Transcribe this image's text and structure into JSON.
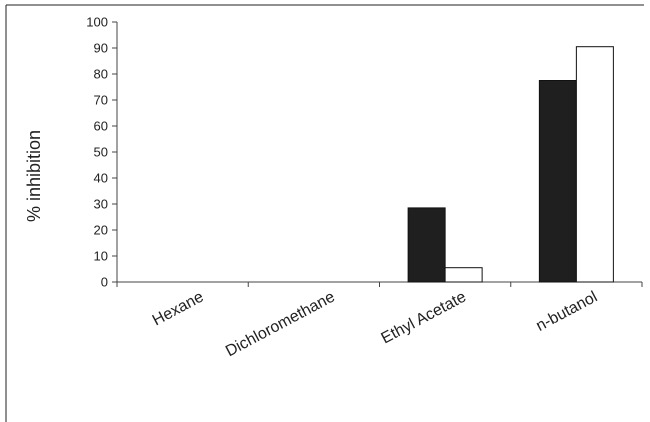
{
  "chart_data": {
    "type": "bar",
    "title": "",
    "xlabel": "",
    "ylabel": "% inhibition",
    "ylim": [
      0,
      100
    ],
    "yticks": [
      0,
      10,
      20,
      30,
      40,
      50,
      60,
      70,
      80,
      90,
      100
    ],
    "categories": [
      "Hexane",
      "Dichloromethane",
      "Ethyl Acetate",
      "n-butanol"
    ],
    "series": [
      {
        "values": [
          0,
          0,
          28.5,
          77.5
        ],
        "color": "#1f1f1f"
      },
      {
        "values": [
          0,
          0,
          5.5,
          90.5
        ],
        "color": "#ffffff"
      }
    ],
    "legend": "none",
    "grid": false
  }
}
